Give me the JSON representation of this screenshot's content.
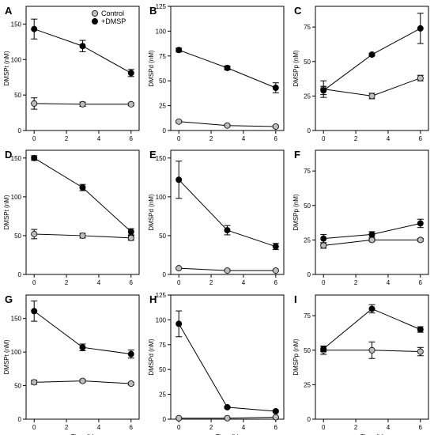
{
  "legend": {
    "entries": [
      {
        "name": "Control",
        "color": "#bdbdbd"
      },
      {
        "name": "+DMSP",
        "color": "#000000"
      }
    ],
    "placement": "top-right of panel A"
  },
  "chart_data": [
    {
      "panel": "A",
      "type": "line",
      "xlabel": "",
      "ylabel": "DMSPt (nM)",
      "xlim": [
        -0.5,
        6.5
      ],
      "ylim": [
        0,
        175
      ],
      "xticks": [
        0,
        2,
        4,
        6
      ],
      "yticks": [
        0,
        50,
        100,
        150
      ],
      "x": [
        0,
        3,
        6
      ],
      "series": [
        {
          "name": "Control",
          "values": [
            38,
            37,
            37
          ],
          "errors": [
            8,
            3,
            2
          ]
        },
        {
          "name": "+DMSP",
          "values": [
            143,
            119,
            81
          ],
          "errors": [
            14,
            8,
            5
          ]
        }
      ]
    },
    {
      "panel": "B",
      "type": "line",
      "xlabel": "",
      "ylabel": "DMSPd (nM)",
      "xlim": [
        -0.5,
        6.5
      ],
      "ylim": [
        0,
        125
      ],
      "xticks": [
        0,
        2,
        4,
        6
      ],
      "yticks": [
        0,
        25,
        50,
        75,
        100,
        125
      ],
      "x": [
        0,
        3,
        6
      ],
      "series": [
        {
          "name": "Control",
          "values": [
            9,
            5,
            4
          ],
          "errors": [
            1,
            1,
            1
          ]
        },
        {
          "name": "+DMSP",
          "values": [
            81,
            63,
            43
          ],
          "errors": [
            2,
            2,
            5
          ]
        }
      ]
    },
    {
      "panel": "C",
      "type": "line",
      "xlabel": "",
      "ylabel": "DMSPp (nM)",
      "xlim": [
        -0.5,
        6.5
      ],
      "ylim": [
        0,
        90
      ],
      "xticks": [
        0,
        2,
        4,
        6
      ],
      "yticks": [
        0,
        25,
        50,
        75
      ],
      "x": [
        0,
        3,
        6
      ],
      "series": [
        {
          "name": "Control",
          "values": [
            30,
            25,
            38
          ],
          "errors": [
            6,
            2,
            2
          ]
        },
        {
          "name": "+DMSP",
          "values": [
            29,
            55,
            74
          ],
          "errors": [
            3,
            1,
            11
          ]
        }
      ]
    },
    {
      "panel": "D",
      "type": "line",
      "xlabel": "",
      "ylabel": "DMSPt (nM)",
      "xlim": [
        -0.5,
        6.5
      ],
      "ylim": [
        0,
        160
      ],
      "xticks": [
        0,
        2,
        4,
        6
      ],
      "yticks": [
        0,
        50,
        100,
        150
      ],
      "x": [
        0,
        3,
        6
      ],
      "series": [
        {
          "name": "Control",
          "values": [
            52,
            50,
            47
          ],
          "errors": [
            6,
            3,
            3
          ]
        },
        {
          "name": "+DMSP",
          "values": [
            150,
            112,
            55
          ],
          "errors": [
            3,
            4,
            4
          ]
        }
      ]
    },
    {
      "panel": "E",
      "type": "line",
      "xlabel": "",
      "ylabel": "DMSPd (nM)",
      "xlim": [
        -0.5,
        6.5
      ],
      "ylim": [
        0,
        160
      ],
      "xticks": [
        0,
        2,
        4,
        6
      ],
      "yticks": [
        0,
        50,
        100,
        150
      ],
      "x": [
        0,
        3,
        6
      ],
      "series": [
        {
          "name": "Control",
          "values": [
            8,
            5,
            5
          ],
          "errors": [
            1,
            1,
            1
          ]
        },
        {
          "name": "+DMSP",
          "values": [
            122,
            57,
            36
          ],
          "errors": [
            24,
            6,
            4
          ]
        }
      ]
    },
    {
      "panel": "F",
      "type": "line",
      "xlabel": "",
      "ylabel": "DMSPp (nM)",
      "xlim": [
        -0.5,
        6.5
      ],
      "ylim": [
        0,
        90
      ],
      "xticks": [
        0,
        2,
        4,
        6
      ],
      "yticks": [
        0,
        25,
        50,
        75
      ],
      "x": [
        0,
        3,
        6
      ],
      "series": [
        {
          "name": "Control",
          "values": [
            21,
            25,
            25
          ],
          "errors": [
            2,
            1,
            1
          ]
        },
        {
          "name": "+DMSP",
          "values": [
            26,
            29,
            37
          ],
          "errors": [
            3,
            2,
            3
          ]
        }
      ]
    },
    {
      "panel": "G",
      "type": "line",
      "xlabel": "Time (h)",
      "ylabel": "DMSPt (nM)",
      "xlim": [
        -0.5,
        6.5
      ],
      "ylim": [
        0,
        185
      ],
      "xticks": [
        0,
        2,
        4,
        6
      ],
      "yticks": [
        0,
        50,
        100,
        150
      ],
      "x": [
        0,
        3,
        6
      ],
      "series": [
        {
          "name": "Control",
          "values": [
            55,
            57,
            53
          ],
          "errors": [
            3,
            2,
            2
          ]
        },
        {
          "name": "+DMSP",
          "values": [
            161,
            107,
            97
          ],
          "errors": [
            15,
            5,
            6
          ]
        }
      ]
    },
    {
      "panel": "H",
      "type": "line",
      "xlabel": "Time (h)",
      "ylabel": "DMSPd (nM)",
      "xlim": [
        -0.5,
        6.5
      ],
      "ylim": [
        0,
        125
      ],
      "xticks": [
        0,
        2,
        4,
        6
      ],
      "yticks": [
        0,
        25,
        50,
        75,
        100,
        125
      ],
      "x": [
        0,
        3,
        6
      ],
      "series": [
        {
          "name": "Control",
          "values": [
            1,
            1,
            2
          ],
          "errors": [
            0.5,
            0.5,
            0.5
          ]
        },
        {
          "name": "+DMSP",
          "values": [
            96,
            12,
            8
          ],
          "errors": [
            13,
            1,
            1
          ]
        }
      ]
    },
    {
      "panel": "I",
      "type": "line",
      "xlabel": "Time (h)",
      "ylabel": "DMSPp (nM)",
      "xlim": [
        -0.5,
        6.5
      ],
      "ylim": [
        0,
        90
      ],
      "xticks": [
        0,
        2,
        4,
        6
      ],
      "yticks": [
        0,
        25,
        50,
        75
      ],
      "x": [
        0,
        3,
        6
      ],
      "series": [
        {
          "name": "Control",
          "values": [
            50,
            50,
            49
          ],
          "errors": [
            3,
            6,
            3
          ]
        },
        {
          "name": "+DMSP",
          "values": [
            51,
            80,
            65
          ],
          "errors": [
            2,
            3,
            2
          ]
        }
      ]
    }
  ]
}
